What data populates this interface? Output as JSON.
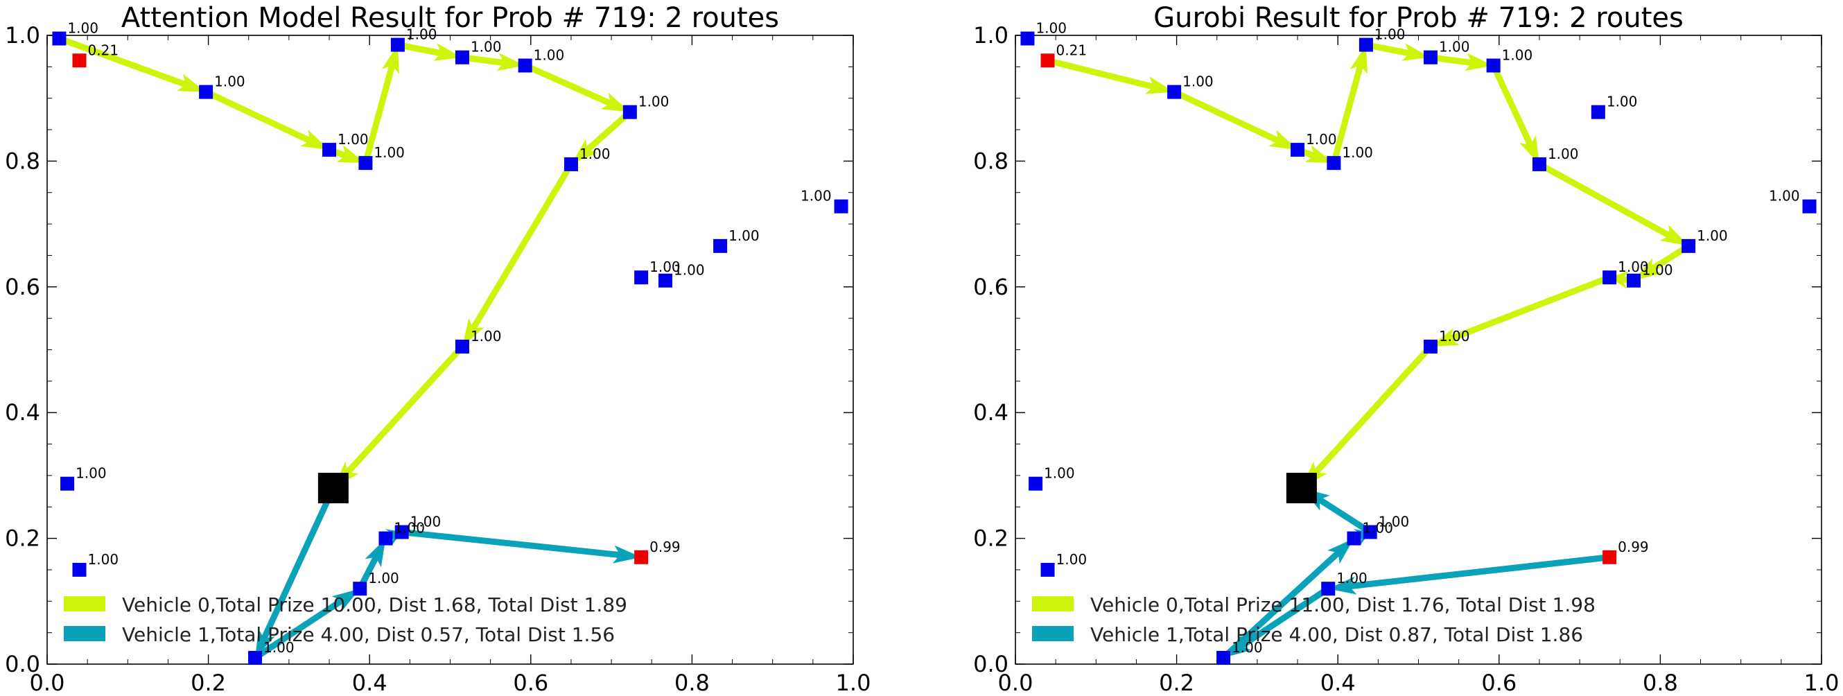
{
  "colors": {
    "vehicle_0": "#ccf50a",
    "vehicle_1": "#0aa2b8",
    "node": "#0000ee",
    "node_low_prize": "#ee0000",
    "depot": "#000000"
  },
  "chart_data": [
    {
      "type": "scatter",
      "title": "Attention Model Result for Prob # 719: 2 routes",
      "xlim": [
        0,
        1
      ],
      "ylim": [
        0,
        1
      ],
      "xticks": [
        "0.0",
        "0.2",
        "0.4",
        "0.6",
        "0.8",
        "1.0"
      ],
      "yticks": [
        "0.0",
        "0.2",
        "0.4",
        "0.6",
        "0.8",
        "1.0"
      ],
      "grid": false,
      "legend_position": "lower-left",
      "depot": {
        "x": 0.355,
        "y": 0.28
      },
      "nodes": [
        {
          "x": 0.015,
          "y": 0.995,
          "label": "1.00",
          "color": "blue"
        },
        {
          "x": 0.04,
          "y": 0.96,
          "label": "0.21",
          "color": "red"
        },
        {
          "x": 0.197,
          "y": 0.91,
          "label": "1.00",
          "color": "blue"
        },
        {
          "x": 0.35,
          "y": 0.818,
          "label": "1.00",
          "color": "blue"
        },
        {
          "x": 0.395,
          "y": 0.797,
          "label": "1.00",
          "color": "blue"
        },
        {
          "x": 0.435,
          "y": 0.985,
          "label": "1.00",
          "color": "blue"
        },
        {
          "x": 0.515,
          "y": 0.965,
          "label": "1.00",
          "color": "blue"
        },
        {
          "x": 0.593,
          "y": 0.952,
          "label": "1.00",
          "color": "blue"
        },
        {
          "x": 0.723,
          "y": 0.878,
          "label": "1.00",
          "color": "blue"
        },
        {
          "x": 0.65,
          "y": 0.795,
          "label": "1.00",
          "color": "blue"
        },
        {
          "x": 0.985,
          "y": 0.728,
          "label": "1.00",
          "color": "blue"
        },
        {
          "x": 0.835,
          "y": 0.665,
          "label": "1.00",
          "color": "blue"
        },
        {
          "x": 0.737,
          "y": 0.615,
          "label": "1.00",
          "color": "blue"
        },
        {
          "x": 0.767,
          "y": 0.61,
          "label": "1.00",
          "color": "blue"
        },
        {
          "x": 0.515,
          "y": 0.505,
          "label": "1.00",
          "color": "blue"
        },
        {
          "x": 0.025,
          "y": 0.287,
          "label": "1.00",
          "color": "blue"
        },
        {
          "x": 0.44,
          "y": 0.21,
          "label": "1.00",
          "color": "blue"
        },
        {
          "x": 0.42,
          "y": 0.2,
          "label": "1.00",
          "color": "blue"
        },
        {
          "x": 0.737,
          "y": 0.17,
          "label": "0.99",
          "color": "red"
        },
        {
          "x": 0.04,
          "y": 0.15,
          "label": "1.00",
          "color": "blue"
        },
        {
          "x": 0.388,
          "y": 0.12,
          "label": "1.00",
          "color": "blue"
        },
        {
          "x": 0.258,
          "y": 0.01,
          "label": "1.00",
          "color": "blue"
        }
      ],
      "series": [
        {
          "name": "Vehicle 0,Total Prize 10.00, Dist 1.68, Total Dist 1.89",
          "color": "#ccf50a",
          "x": [
            0.015,
            0.197,
            0.35,
            0.395,
            0.435,
            0.515,
            0.593,
            0.723,
            0.65,
            0.515,
            0.355
          ],
          "y": [
            0.995,
            0.91,
            0.818,
            0.797,
            0.985,
            0.965,
            0.952,
            0.878,
            0.795,
            0.505,
            0.28
          ]
        },
        {
          "name": "Vehicle 1,Total Prize 4.00, Dist 0.57, Total Dist 1.56",
          "color": "#0aa2b8",
          "x": [
            0.355,
            0.258,
            0.388,
            0.42,
            0.44,
            0.737
          ],
          "y": [
            0.28,
            0.01,
            0.12,
            0.2,
            0.21,
            0.17
          ]
        }
      ]
    },
    {
      "type": "scatter",
      "title": "Gurobi Result for Prob # 719: 2 routes",
      "xlim": [
        0,
        1
      ],
      "ylim": [
        0,
        1
      ],
      "xticks": [
        "0.0",
        "0.2",
        "0.4",
        "0.6",
        "0.8",
        "1.0"
      ],
      "yticks": [
        "0.0",
        "0.2",
        "0.4",
        "0.6",
        "0.8",
        "1.0"
      ],
      "grid": false,
      "legend_position": "lower-left",
      "depot": {
        "x": 0.355,
        "y": 0.28
      },
      "nodes": [
        {
          "x": 0.015,
          "y": 0.995,
          "label": "1.00",
          "color": "blue"
        },
        {
          "x": 0.04,
          "y": 0.96,
          "label": "0.21",
          "color": "red"
        },
        {
          "x": 0.197,
          "y": 0.91,
          "label": "1.00",
          "color": "blue"
        },
        {
          "x": 0.35,
          "y": 0.818,
          "label": "1.00",
          "color": "blue"
        },
        {
          "x": 0.395,
          "y": 0.797,
          "label": "1.00",
          "color": "blue"
        },
        {
          "x": 0.435,
          "y": 0.985,
          "label": "1.00",
          "color": "blue"
        },
        {
          "x": 0.515,
          "y": 0.965,
          "label": "1.00",
          "color": "blue"
        },
        {
          "x": 0.593,
          "y": 0.952,
          "label": "1.00",
          "color": "blue"
        },
        {
          "x": 0.723,
          "y": 0.878,
          "label": "1.00",
          "color": "blue"
        },
        {
          "x": 0.65,
          "y": 0.795,
          "label": "1.00",
          "color": "blue"
        },
        {
          "x": 0.985,
          "y": 0.728,
          "label": "1.00",
          "color": "blue"
        },
        {
          "x": 0.835,
          "y": 0.665,
          "label": "1.00",
          "color": "blue"
        },
        {
          "x": 0.737,
          "y": 0.615,
          "label": "1.00",
          "color": "blue"
        },
        {
          "x": 0.767,
          "y": 0.61,
          "label": "1.00",
          "color": "blue"
        },
        {
          "x": 0.515,
          "y": 0.505,
          "label": "1.00",
          "color": "blue"
        },
        {
          "x": 0.025,
          "y": 0.287,
          "label": "1.00",
          "color": "blue"
        },
        {
          "x": 0.44,
          "y": 0.21,
          "label": "1.00",
          "color": "blue"
        },
        {
          "x": 0.42,
          "y": 0.2,
          "label": "1.00",
          "color": "blue"
        },
        {
          "x": 0.737,
          "y": 0.17,
          "label": "0.99",
          "color": "red"
        },
        {
          "x": 0.04,
          "y": 0.15,
          "label": "1.00",
          "color": "blue"
        },
        {
          "x": 0.388,
          "y": 0.12,
          "label": "1.00",
          "color": "blue"
        },
        {
          "x": 0.258,
          "y": 0.01,
          "label": "1.00",
          "color": "blue"
        }
      ],
      "series": [
        {
          "name": "Vehicle 0,Total Prize 11.00, Dist 1.76, Total Dist 1.98",
          "color": "#ccf50a",
          "x": [
            0.04,
            0.197,
            0.35,
            0.395,
            0.435,
            0.515,
            0.593,
            0.65,
            0.835,
            0.767,
            0.737,
            0.515,
            0.355
          ],
          "y": [
            0.96,
            0.91,
            0.818,
            0.797,
            0.985,
            0.965,
            0.952,
            0.795,
            0.665,
            0.61,
            0.615,
            0.505,
            0.28
          ]
        },
        {
          "name": "Vehicle 1,Total Prize 4.00, Dist 0.87, Total Dist 1.86",
          "color": "#0aa2b8",
          "x": [
            0.737,
            0.388,
            0.258,
            0.42,
            0.44,
            0.355
          ],
          "y": [
            0.17,
            0.12,
            0.01,
            0.2,
            0.21,
            0.28
          ]
        }
      ]
    }
  ]
}
